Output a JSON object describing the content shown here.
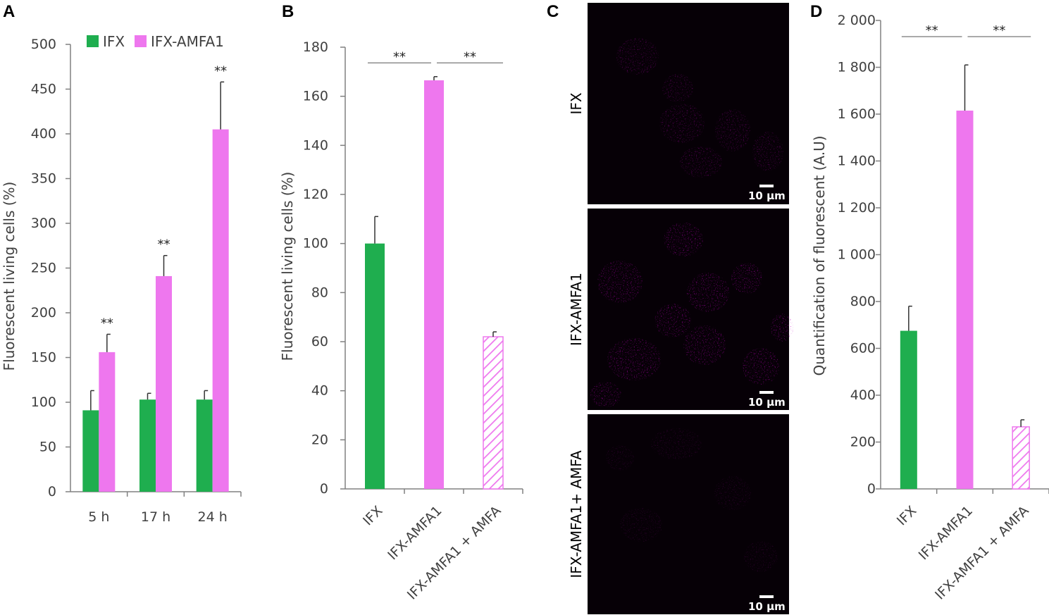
{
  "colors": {
    "ifx": "#1fae4f",
    "amfa1": "#ee77ee",
    "hatch": "#ee77ee"
  },
  "panel_labels": {
    "a": "A",
    "b": "B",
    "c": "C",
    "d": "D"
  },
  "microscopy": {
    "rows": [
      {
        "label": "IFX",
        "scale_bar": "10 μm"
      },
      {
        "label": "IFX-AMFA1",
        "scale_bar": "10 μm"
      },
      {
        "label": "IFX-AMFA1+ AMFA",
        "scale_bar": "10 μm"
      }
    ]
  },
  "chart_data": [
    {
      "id": "A",
      "type": "bar",
      "categories": [
        "5 h",
        "17 h",
        "24 h"
      ],
      "series": [
        {
          "name": "IFX",
          "color": "#1fae4f",
          "values": [
            91,
            103,
            103
          ],
          "errors": [
            22,
            7,
            10
          ]
        },
        {
          "name": "IFX-AMFA1",
          "color": "#ee77ee",
          "values": [
            156,
            241,
            405
          ],
          "errors": [
            20,
            23,
            53
          ]
        }
      ],
      "significance": [
        "**",
        "**",
        "**"
      ],
      "ylabel": "Fluorescent living cells (%)",
      "ylim": [
        0,
        500
      ],
      "yticks": [
        0,
        50,
        100,
        150,
        200,
        250,
        300,
        350,
        400,
        450,
        500
      ],
      "legend": "top-left",
      "grid": false
    },
    {
      "id": "B",
      "type": "bar",
      "categories": [
        "IFX",
        "IFX-AMFA1",
        "IFX-AMFA1 + AMFA"
      ],
      "values": [
        100,
        166.5,
        62
      ],
      "errors": [
        11,
        1.5,
        2
      ],
      "hatched": [
        false,
        false,
        true
      ],
      "comparisons": [
        {
          "from": 0,
          "to": 1,
          "label": "**"
        },
        {
          "from": 1,
          "to": 2,
          "label": "**"
        }
      ],
      "ylabel": "Fluorescent living cells (%)",
      "ylim": [
        0,
        180
      ],
      "yticks": [
        0,
        20,
        40,
        60,
        80,
        100,
        120,
        140,
        160,
        180
      ],
      "grid": false
    },
    {
      "id": "D",
      "type": "bar",
      "categories": [
        "IFX",
        "IFX-AMFA1",
        "IFX-AMFA1 + AMFA"
      ],
      "values": [
        675,
        1615,
        265
      ],
      "errors": [
        105,
        195,
        30
      ],
      "hatched": [
        false,
        false,
        true
      ],
      "comparisons": [
        {
          "from": 0,
          "to": 1,
          "label": "**"
        },
        {
          "from": 1,
          "to": 2,
          "label": "**"
        }
      ],
      "ylabel": "Quantification of fluorescent (A.U)",
      "ylim": [
        0,
        2000
      ],
      "yticks": [
        0,
        200,
        400,
        600,
        800,
        1000,
        1200,
        1400,
        1600,
        1800,
        2000
      ],
      "ytick_labels": [
        "0",
        "200",
        "400",
        "600",
        "800",
        "1 000",
        "1 200",
        "1 400",
        "1 600",
        "1 800",
        "2 000"
      ],
      "grid": false
    }
  ]
}
